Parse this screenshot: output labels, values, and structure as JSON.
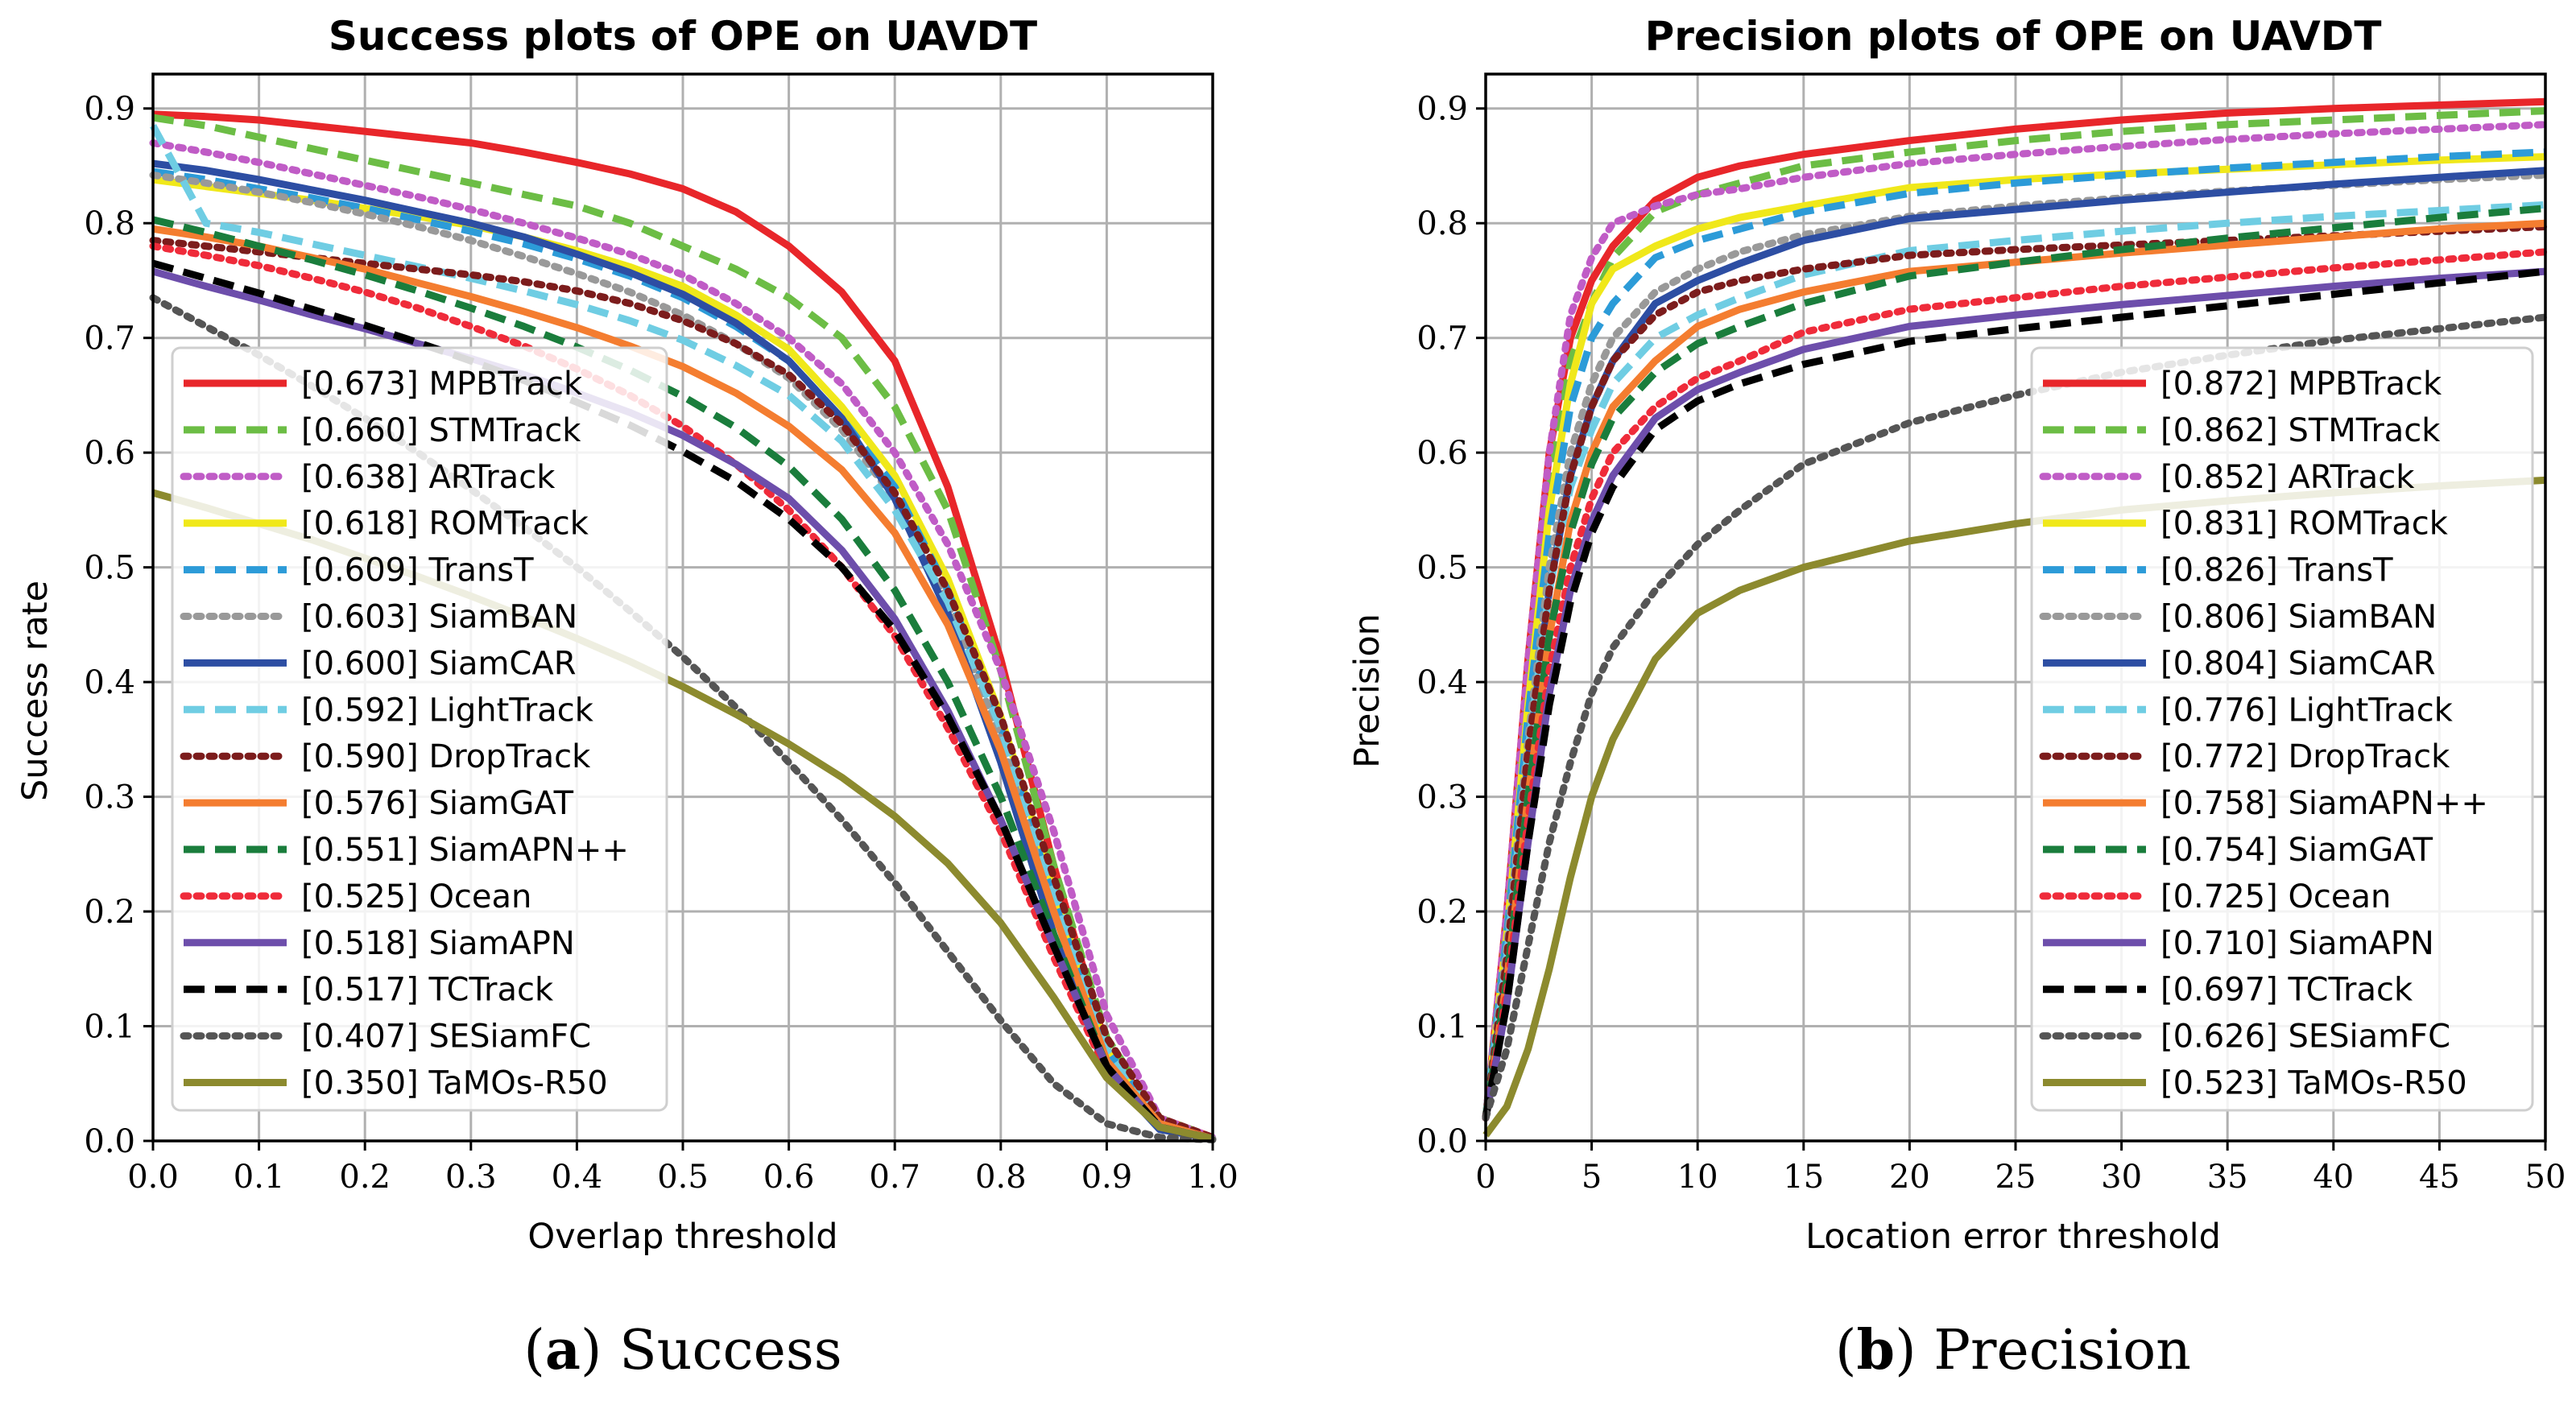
{
  "chart_data": [
    {
      "type": "line",
      "title": "Success plots of OPE on UAVDT",
      "xlabel": "Overlap threshold",
      "ylabel": "Success rate",
      "xlim": [
        0,
        1
      ],
      "ylim": [
        0,
        0.93
      ],
      "xticks": [
        "0.0",
        "0.1",
        "0.2",
        "0.3",
        "0.4",
        "0.5",
        "0.6",
        "0.7",
        "0.8",
        "0.9",
        "1.0"
      ],
      "yticks": [
        "0.0",
        "0.1",
        "0.2",
        "0.3",
        "0.4",
        "0.5",
        "0.6",
        "0.7",
        "0.8",
        "0.9"
      ],
      "caption_label": "a",
      "caption_text": "Success",
      "legend_position": "lower-left",
      "x": [
        0,
        0.05,
        0.1,
        0.15,
        0.2,
        0.25,
        0.3,
        0.35,
        0.4,
        0.45,
        0.5,
        0.55,
        0.6,
        0.65,
        0.7,
        0.75,
        0.8,
        0.85,
        0.9,
        0.95,
        1.0
      ],
      "series": [
        {
          "name": "[0.673] MPBTrack",
          "color": "#e8262a",
          "dash": "solid",
          "values": [
            0.895,
            0.893,
            0.89,
            0.885,
            0.88,
            0.875,
            0.87,
            0.862,
            0.853,
            0.843,
            0.83,
            0.81,
            0.78,
            0.74,
            0.68,
            0.57,
            0.42,
            0.24,
            0.08,
            0.02,
            0.003
          ]
        },
        {
          "name": "[0.660] STMTrack",
          "color": "#6cbd45",
          "dash": "dashed",
          "values": [
            0.892,
            0.885,
            0.875,
            0.865,
            0.855,
            0.845,
            0.835,
            0.825,
            0.815,
            0.8,
            0.78,
            0.76,
            0.735,
            0.7,
            0.64,
            0.55,
            0.41,
            0.24,
            0.09,
            0.02,
            0.003
          ]
        },
        {
          "name": "[0.638] ARTrack",
          "color": "#c05cc6",
          "dash": "dotted",
          "values": [
            0.87,
            0.862,
            0.853,
            0.843,
            0.833,
            0.823,
            0.812,
            0.8,
            0.787,
            0.773,
            0.755,
            0.73,
            0.7,
            0.66,
            0.6,
            0.52,
            0.41,
            0.27,
            0.11,
            0.02,
            0.003
          ]
        },
        {
          "name": "[0.618] ROMTrack",
          "color": "#f0e81a",
          "dash": "solid",
          "values": [
            0.838,
            0.832,
            0.826,
            0.82,
            0.813,
            0.806,
            0.798,
            0.788,
            0.776,
            0.762,
            0.745,
            0.72,
            0.69,
            0.64,
            0.58,
            0.49,
            0.37,
            0.22,
            0.08,
            0.015,
            0.002
          ]
        },
        {
          "name": "[0.609] TransT",
          "color": "#2c9bd8",
          "dash": "dashed",
          "values": [
            0.845,
            0.838,
            0.83,
            0.822,
            0.813,
            0.803,
            0.793,
            0.782,
            0.769,
            0.754,
            0.735,
            0.71,
            0.68,
            0.63,
            0.57,
            0.48,
            0.36,
            0.21,
            0.08,
            0.015,
            0.002
          ]
        },
        {
          "name": "[0.603] SiamBAN",
          "color": "#999999",
          "dash": "dotted",
          "values": [
            0.842,
            0.835,
            0.827,
            0.818,
            0.808,
            0.797,
            0.785,
            0.771,
            0.756,
            0.74,
            0.72,
            0.695,
            0.665,
            0.62,
            0.56,
            0.47,
            0.35,
            0.2,
            0.07,
            0.015,
            0.002
          ]
        },
        {
          "name": "[0.600] SiamCAR",
          "color": "#2d4ea3",
          "dash": "solid",
          "values": [
            0.852,
            0.846,
            0.838,
            0.829,
            0.82,
            0.81,
            0.8,
            0.788,
            0.773,
            0.757,
            0.738,
            0.713,
            0.68,
            0.63,
            0.56,
            0.46,
            0.33,
            0.18,
            0.06,
            0.01,
            0.002
          ]
        },
        {
          "name": "[0.592] LightTrack",
          "color": "#6fcde3",
          "dash": "dashed",
          "values": [
            0.885,
            0.8,
            0.792,
            0.782,
            0.772,
            0.762,
            0.752,
            0.741,
            0.729,
            0.715,
            0.698,
            0.676,
            0.65,
            0.61,
            0.55,
            0.47,
            0.36,
            0.22,
            0.08,
            0.015,
            0.002
          ]
        },
        {
          "name": "[0.590] DropTrack",
          "color": "#7c1c1c",
          "dash": "dotted",
          "values": [
            0.785,
            0.78,
            0.775,
            0.77,
            0.765,
            0.76,
            0.755,
            0.749,
            0.741,
            0.73,
            0.715,
            0.695,
            0.668,
            0.625,
            0.565,
            0.48,
            0.37,
            0.23,
            0.09,
            0.02,
            0.003
          ]
        },
        {
          "name": "[0.576] SiamGAT",
          "color": "#f47d30",
          "dash": "solid",
          "values": [
            0.795,
            0.788,
            0.78,
            0.77,
            0.76,
            0.748,
            0.736,
            0.723,
            0.709,
            0.693,
            0.675,
            0.652,
            0.623,
            0.585,
            0.53,
            0.45,
            0.34,
            0.2,
            0.07,
            0.015,
            0.002
          ]
        },
        {
          "name": "[0.551] SiamAPN++",
          "color": "#1a7d3c",
          "dash": "dashed",
          "values": [
            0.803,
            0.792,
            0.78,
            0.768,
            0.755,
            0.741,
            0.726,
            0.71,
            0.692,
            0.672,
            0.649,
            0.622,
            0.588,
            0.542,
            0.48,
            0.4,
            0.3,
            0.18,
            0.065,
            0.012,
            0.002
          ]
        },
        {
          "name": "[0.525] Ocean",
          "color": "#ef2b3a",
          "dash": "dotted",
          "values": [
            0.78,
            0.772,
            0.763,
            0.752,
            0.74,
            0.726,
            0.71,
            0.693,
            0.673,
            0.65,
            0.623,
            0.59,
            0.55,
            0.5,
            0.44,
            0.36,
            0.27,
            0.16,
            0.06,
            0.012,
            0.002
          ]
        },
        {
          "name": "[0.518] SiamAPN",
          "color": "#6d4eab",
          "dash": "solid",
          "values": [
            0.758,
            0.745,
            0.733,
            0.72,
            0.708,
            0.695,
            0.682,
            0.668,
            0.652,
            0.635,
            0.615,
            0.59,
            0.56,
            0.515,
            0.455,
            0.375,
            0.28,
            0.17,
            0.065,
            0.012,
            0.002
          ]
        },
        {
          "name": "[0.517] TCTrack",
          "color": "#000000",
          "dash": "dashed",
          "values": [
            0.765,
            0.752,
            0.739,
            0.725,
            0.711,
            0.696,
            0.68,
            0.663,
            0.644,
            0.624,
            0.601,
            0.575,
            0.542,
            0.5,
            0.445,
            0.37,
            0.28,
            0.17,
            0.065,
            0.012,
            0.002
          ]
        },
        {
          "name": "[0.407] SESiamFC",
          "color": "#555555",
          "dash": "dotted",
          "values": [
            0.735,
            0.71,
            0.685,
            0.658,
            0.63,
            0.6,
            0.568,
            0.535,
            0.5,
            0.462,
            0.422,
            0.378,
            0.33,
            0.28,
            0.225,
            0.165,
            0.105,
            0.05,
            0.015,
            0.003,
            0.001
          ]
        },
        {
          "name": "[0.350] TaMOs-R50",
          "color": "#8c8a2e",
          "dash": "solid",
          "values": [
            0.565,
            0.552,
            0.538,
            0.524,
            0.508,
            0.492,
            0.475,
            0.457,
            0.438,
            0.418,
            0.396,
            0.372,
            0.346,
            0.317,
            0.283,
            0.242,
            0.19,
            0.125,
            0.055,
            0.012,
            0.002
          ]
        }
      ]
    },
    {
      "type": "line",
      "title": "Precision plots of OPE on UAVDT",
      "xlabel": "Location error threshold",
      "ylabel": "Precision",
      "xlim": [
        0,
        50
      ],
      "ylim": [
        0,
        0.93
      ],
      "xticks": [
        "0",
        "5",
        "10",
        "15",
        "20",
        "25",
        "30",
        "35",
        "40",
        "45",
        "50"
      ],
      "yticks": [
        "0.0",
        "0.1",
        "0.2",
        "0.3",
        "0.4",
        "0.5",
        "0.6",
        "0.7",
        "0.8",
        "0.9"
      ],
      "caption_label": "b",
      "caption_text": "Precision",
      "legend_position": "lower-right",
      "x": [
        0,
        1,
        2,
        3,
        4,
        5,
        6,
        8,
        10,
        12,
        15,
        20,
        25,
        30,
        35,
        40,
        45,
        50
      ],
      "series": [
        {
          "name": "[0.872] MPBTrack",
          "color": "#e8262a",
          "dash": "solid",
          "values": [
            0.02,
            0.2,
            0.42,
            0.6,
            0.7,
            0.75,
            0.78,
            0.82,
            0.84,
            0.85,
            0.86,
            0.872,
            0.882,
            0.89,
            0.896,
            0.9,
            0.903,
            0.906
          ]
        },
        {
          "name": "[0.862] STMTrack",
          "color": "#6cbd45",
          "dash": "dashed",
          "values": [
            0.02,
            0.19,
            0.4,
            0.57,
            0.68,
            0.73,
            0.77,
            0.81,
            0.825,
            0.835,
            0.85,
            0.862,
            0.872,
            0.88,
            0.886,
            0.89,
            0.894,
            0.898
          ]
        },
        {
          "name": "[0.852] ARTrack",
          "color": "#c05cc6",
          "dash": "dotted",
          "values": [
            0.02,
            0.2,
            0.42,
            0.6,
            0.72,
            0.77,
            0.8,
            0.815,
            0.825,
            0.83,
            0.84,
            0.852,
            0.86,
            0.867,
            0.873,
            0.878,
            0.882,
            0.886
          ]
        },
        {
          "name": "[0.831] ROMTrack",
          "color": "#f0e81a",
          "dash": "solid",
          "values": [
            0.02,
            0.18,
            0.38,
            0.55,
            0.66,
            0.73,
            0.76,
            0.78,
            0.795,
            0.805,
            0.815,
            0.831,
            0.838,
            0.843,
            0.847,
            0.851,
            0.855,
            0.858
          ]
        },
        {
          "name": "[0.826] TransT",
          "color": "#2c9bd8",
          "dash": "dashed",
          "values": [
            0.02,
            0.18,
            0.37,
            0.53,
            0.64,
            0.7,
            0.73,
            0.77,
            0.785,
            0.795,
            0.81,
            0.826,
            0.835,
            0.842,
            0.848,
            0.853,
            0.858,
            0.862
          ]
        },
        {
          "name": "[0.806] SiamBAN",
          "color": "#999999",
          "dash": "dotted",
          "values": [
            0.02,
            0.17,
            0.35,
            0.5,
            0.6,
            0.66,
            0.7,
            0.74,
            0.76,
            0.775,
            0.79,
            0.806,
            0.815,
            0.822,
            0.828,
            0.833,
            0.838,
            0.842
          ]
        },
        {
          "name": "[0.804] SiamCAR",
          "color": "#2d4ea3",
          "dash": "solid",
          "values": [
            0.02,
            0.15,
            0.33,
            0.48,
            0.58,
            0.64,
            0.68,
            0.73,
            0.75,
            0.765,
            0.785,
            0.804,
            0.812,
            0.82,
            0.827,
            0.834,
            0.84,
            0.846
          ]
        },
        {
          "name": "[0.776] LightTrack",
          "color": "#6fcde3",
          "dash": "dashed",
          "values": [
            0.02,
            0.16,
            0.34,
            0.48,
            0.57,
            0.62,
            0.66,
            0.7,
            0.72,
            0.735,
            0.755,
            0.776,
            0.785,
            0.793,
            0.8,
            0.806,
            0.811,
            0.816
          ]
        },
        {
          "name": "[0.772] DropTrack",
          "color": "#7c1c1c",
          "dash": "dotted",
          "values": [
            0.02,
            0.16,
            0.34,
            0.48,
            0.58,
            0.64,
            0.68,
            0.72,
            0.74,
            0.75,
            0.76,
            0.772,
            0.777,
            0.781,
            0.785,
            0.789,
            0.793,
            0.797
          ]
        },
        {
          "name": "[0.758] SiamAPN++",
          "color": "#f47d30",
          "dash": "solid",
          "values": [
            0.02,
            0.14,
            0.3,
            0.44,
            0.54,
            0.6,
            0.64,
            0.68,
            0.71,
            0.725,
            0.74,
            0.758,
            0.766,
            0.774,
            0.781,
            0.788,
            0.795,
            0.8
          ]
        },
        {
          "name": "[0.754] SiamGAT",
          "color": "#1a7d3c",
          "dash": "dashed",
          "values": [
            0.02,
            0.14,
            0.3,
            0.44,
            0.53,
            0.59,
            0.63,
            0.67,
            0.695,
            0.71,
            0.73,
            0.754,
            0.766,
            0.777,
            0.787,
            0.796,
            0.805,
            0.813
          ]
        },
        {
          "name": "[0.725] Ocean",
          "color": "#ef2b3a",
          "dash": "dotted",
          "values": [
            0.02,
            0.13,
            0.28,
            0.41,
            0.5,
            0.56,
            0.6,
            0.64,
            0.665,
            0.68,
            0.705,
            0.725,
            0.735,
            0.745,
            0.753,
            0.761,
            0.768,
            0.775
          ]
        },
        {
          "name": "[0.710] SiamAPN",
          "color": "#6d4eab",
          "dash": "solid",
          "values": [
            0.02,
            0.12,
            0.26,
            0.39,
            0.48,
            0.54,
            0.58,
            0.63,
            0.655,
            0.67,
            0.69,
            0.71,
            0.72,
            0.729,
            0.737,
            0.745,
            0.752,
            0.758
          ]
        },
        {
          "name": "[0.697] TCTrack",
          "color": "#000000",
          "dash": "dashed",
          "values": [
            0.02,
            0.12,
            0.26,
            0.38,
            0.47,
            0.53,
            0.57,
            0.62,
            0.645,
            0.66,
            0.677,
            0.697,
            0.708,
            0.718,
            0.728,
            0.738,
            0.748,
            0.758
          ]
        },
        {
          "name": "[0.626] SESiamFC",
          "color": "#555555",
          "dash": "dotted",
          "values": [
            0.02,
            0.08,
            0.17,
            0.26,
            0.33,
            0.39,
            0.43,
            0.48,
            0.52,
            0.55,
            0.59,
            0.626,
            0.65,
            0.67,
            0.685,
            0.698,
            0.708,
            0.718
          ]
        },
        {
          "name": "[0.523] TaMOs-R50",
          "color": "#8c8a2e",
          "dash": "solid",
          "values": [
            0.005,
            0.03,
            0.08,
            0.15,
            0.23,
            0.3,
            0.35,
            0.42,
            0.46,
            0.48,
            0.5,
            0.523,
            0.538,
            0.55,
            0.558,
            0.565,
            0.571,
            0.576
          ]
        }
      ]
    }
  ]
}
